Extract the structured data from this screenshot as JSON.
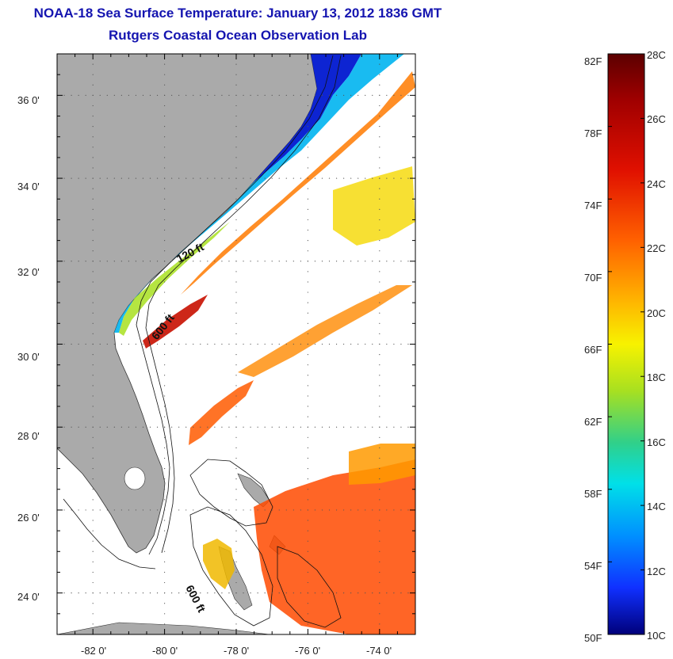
{
  "title": {
    "line1": "NOAA-18 Sea Surface Temperature:  January 13, 2012 1836 GMT",
    "line2": "Rutgers Coastal Ocean Observation Lab"
  },
  "map": {
    "lon_ticks": [
      "-82 0'",
      "-80 0'",
      "-78 0'",
      "-76 0'",
      "-74 0'"
    ],
    "lat_ticks": [
      "36 0'",
      "34 0'",
      "32 0'",
      "30 0'",
      "28 0'",
      "26 0'",
      "24 0'"
    ],
    "lon_range": [
      -83,
      -73
    ],
    "lat_range": [
      23,
      37
    ],
    "contour_labels": [
      "120 ft",
      "600 ft",
      "600 ft"
    ],
    "land_color": "#aaaaaa"
  },
  "colorbar": {
    "fahrenheit_labels": [
      "82F",
      "78F",
      "74F",
      "70F",
      "66F",
      "62F",
      "58F",
      "54F",
      "50F"
    ],
    "celsius_labels": [
      "28C",
      "26C",
      "24C",
      "22C",
      "20C",
      "18C",
      "16C",
      "14C",
      "12C",
      "10C"
    ],
    "colors": [
      "#5c0000",
      "#a00000",
      "#dd1500",
      "#ff5a00",
      "#ff9a00",
      "#ffd200",
      "#f5f500",
      "#a8e020",
      "#34d07a",
      "#00e4e4",
      "#0090ff",
      "#1040ff",
      "#0000dc",
      "#00007a"
    ]
  }
}
